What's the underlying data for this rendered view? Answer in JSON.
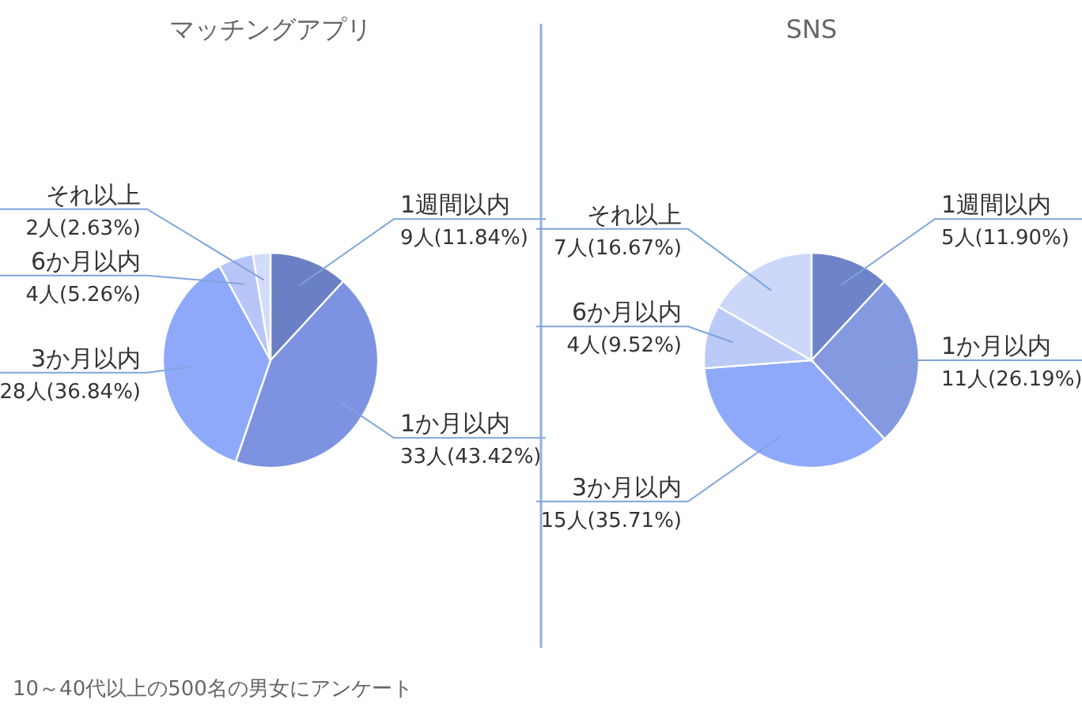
{
  "chart_data": [
    {
      "type": "pie",
      "title": "マッチングアプリ",
      "categories": [
        "1週間以内",
        "1か月以内",
        "3か月以内",
        "6か月以内",
        "それ以上"
      ],
      "values": [
        9,
        33,
        28,
        4,
        2
      ],
      "colors": [
        "#6b7fc4",
        "#7d93e2",
        "#8ea9f9",
        "#b7c5f8",
        "#d3dbfa"
      ],
      "value_labels": [
        "9人(11.84%)",
        "33人(43.42%)",
        "28人(36.84%)",
        "4人(5.26%)",
        "2人(2.63%)"
      ],
      "annotations": [
        "10～40代以上の500名の男女にアンケート"
      ]
    },
    {
      "type": "pie",
      "title": "SNS",
      "categories": [
        "1週間以内",
        "1か月以内",
        "3か月以内",
        "6か月以内",
        "それ以上"
      ],
      "values": [
        5,
        11,
        15,
        4,
        7
      ],
      "colors": [
        "#6f84c8",
        "#8499df",
        "#8fa9fa",
        "#bccaf8",
        "#cdd7fa"
      ],
      "value_labels": [
        "5人(11.90%)",
        "11人(26.19%)",
        "15人(35.71%)",
        "4人(9.52%)",
        "7人(16.67%)"
      ]
    }
  ]
}
